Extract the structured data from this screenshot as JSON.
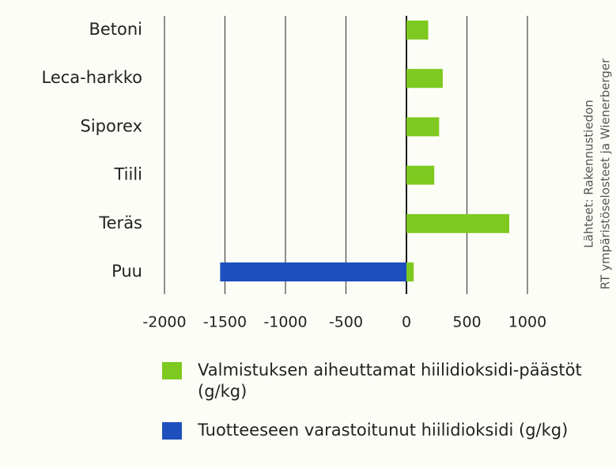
{
  "chart_data": {
    "type": "bar",
    "orientation": "horizontal",
    "categories": [
      "Betoni",
      "Leca-harkko",
      "Siporex",
      "Tiili",
      "Teräs",
      "Puu"
    ],
    "series": [
      {
        "name": "Valmistuksen aiheuttamat hiilidioksidi-päästöt (g/kg)",
        "color": "#7dc91f",
        "values": [
          180,
          300,
          270,
          230,
          850,
          60
        ]
      },
      {
        "name": "Tuotteeseen varastoitunut hiilidioksidi (g/kg)",
        "color": "#1f4fbd",
        "values": [
          null,
          null,
          null,
          null,
          null,
          -1540
        ]
      }
    ],
    "xlim": [
      -2000,
      1000
    ],
    "xticks": [
      -2000,
      -1500,
      -1000,
      -500,
      0,
      500,
      1000
    ],
    "grid": true,
    "source": [
      "Lähteet: Rakennustiedon",
      "RT ympäristöselosteet ja Wienerberger"
    ]
  }
}
